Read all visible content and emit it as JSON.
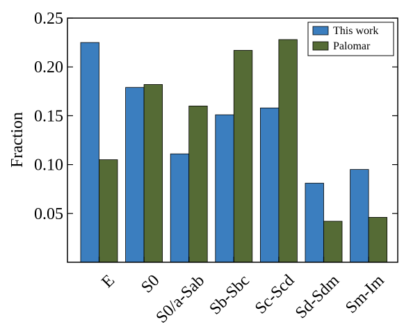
{
  "chart_data": {
    "type": "bar",
    "title": "",
    "xlabel": "",
    "ylabel": "Fraction",
    "ylim": [
      0.0,
      0.25
    ],
    "yticks": [
      "0.05",
      "0.10",
      "0.15",
      "0.20",
      "0.25"
    ],
    "categories": [
      "E",
      "S0",
      "S0/a-Sab",
      "Sb-Sbc",
      "Sc-Scd",
      "Sd-Sdm",
      "Sm-Im"
    ],
    "series": [
      {
        "name": "This work",
        "color": "#3b7ebf",
        "values": [
          0.225,
          0.179,
          0.111,
          0.151,
          0.158,
          0.081,
          0.095
        ]
      },
      {
        "name": "Palomar",
        "color": "#556b35",
        "values": [
          0.105,
          0.182,
          0.16,
          0.217,
          0.228,
          0.042,
          0.046
        ]
      }
    ],
    "legend_position": "top-right",
    "grid": false
  }
}
